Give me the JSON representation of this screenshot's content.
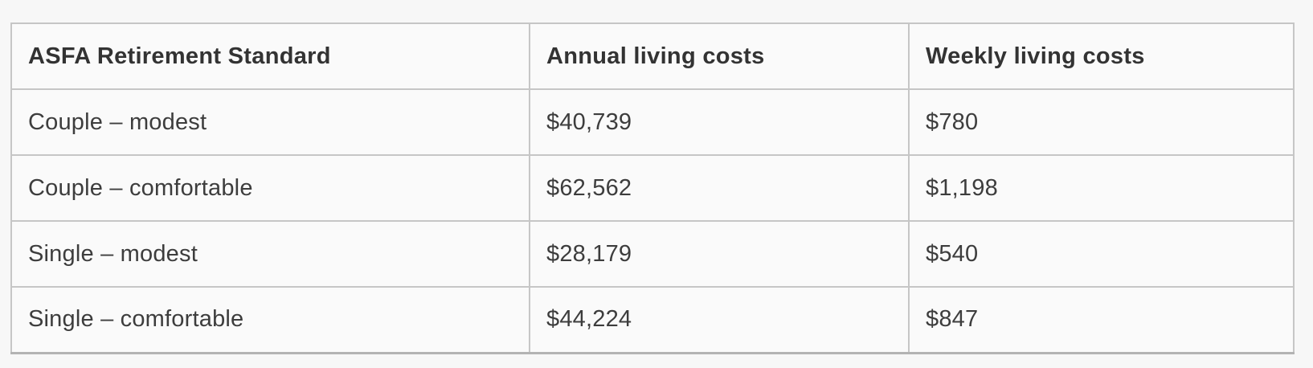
{
  "table": {
    "headers": [
      "ASFA Retirement Standard",
      "Annual living costs",
      "Weekly living costs"
    ],
    "rows": [
      [
        "Couple – modest",
        "$40,739",
        "$780"
      ],
      [
        "Couple – comfortable",
        "$62,562",
        "$1,198"
      ],
      [
        "Single – modest",
        "$28,179",
        "$540"
      ],
      [
        "Single – comfortable",
        "$44,224",
        "$847"
      ]
    ]
  },
  "colors": {
    "page_background": "#f7f7f7",
    "cell_background": "#fafafa",
    "border": "#c6c6c6",
    "header_text": "#333333",
    "body_text": "#3d3d3d"
  }
}
